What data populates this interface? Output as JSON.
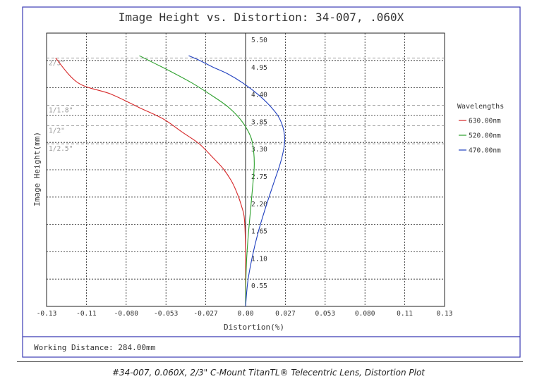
{
  "chart_data": {
    "type": "line",
    "title": "Image Height vs. Distortion: 34-007, .060X",
    "xlabel": "Distortion(%)",
    "ylabel": "Image Height(mm)",
    "xlim": [
      -0.133,
      0.133
    ],
    "ylim": [
      0,
      6.05
    ],
    "x_ticks": [
      "-0.13",
      "-0.11",
      "-0.080",
      "-0.053",
      "-0.027",
      "0.00",
      "0.027",
      "0.053",
      "0.080",
      "0.11",
      "0.13"
    ],
    "y_ticks": [
      "0.55",
      "1.10",
      "1.65",
      "2.20",
      "2.75",
      "3.30",
      "3.85",
      "4.40",
      "4.95",
      "5.50"
    ],
    "grid": true,
    "legend_title": "Wavelengths",
    "legend_position": "right",
    "sensor_marks": [
      {
        "label": "2/3\"",
        "y": 5.5
      },
      {
        "label": "1/1.8\"",
        "y": 4.45
      },
      {
        "label": "1/2\"",
        "y": 4.0
      },
      {
        "label": "1/2.5\"",
        "y": 3.6
      }
    ],
    "series": [
      {
        "name": "630.00nm",
        "color": "#d62728",
        "x": [
          0,
          0,
          0,
          -0.0003,
          -0.001,
          -0.0025,
          -0.005,
          -0.009,
          -0.015,
          -0.022,
          -0.031,
          -0.042,
          -0.055,
          -0.071,
          -0.09,
          -0.112,
          -0.127
        ],
        "y": [
          0,
          0.55,
          1.1,
          1.65,
          2.0,
          2.2,
          2.45,
          2.75,
          3.05,
          3.3,
          3.6,
          3.85,
          4.15,
          4.4,
          4.7,
          4.95,
          5.5
        ]
      },
      {
        "name": "520.00nm",
        "color": "#2ca02c",
        "x": [
          0,
          0.0002,
          0.0008,
          0.002,
          0.0035,
          0.005,
          0.0058,
          0.0055,
          0.004,
          0.0005,
          -0.005,
          -0.013,
          -0.024,
          -0.036,
          -0.05,
          -0.062,
          -0.071
        ],
        "y": [
          0,
          0.55,
          1.1,
          1.65,
          2.2,
          2.75,
          3.1,
          3.4,
          3.7,
          3.95,
          4.2,
          4.45,
          4.7,
          4.95,
          5.2,
          5.4,
          5.55
        ]
      },
      {
        "name": "470.00nm",
        "color": "#1f3fbf",
        "x": [
          0,
          0.0015,
          0.0045,
          0.0085,
          0.0135,
          0.019,
          0.0235,
          0.026,
          0.0255,
          0.022,
          0.016,
          0.008,
          -0.002,
          -0.012,
          -0.022,
          -0.031,
          -0.038
        ],
        "y": [
          0,
          0.55,
          1.1,
          1.65,
          2.2,
          2.75,
          3.2,
          3.6,
          3.9,
          4.2,
          4.45,
          4.7,
          4.95,
          5.15,
          5.3,
          5.45,
          5.55
        ]
      }
    ]
  },
  "footer": {
    "working_distance": "Working Distance: 284.00mm",
    "caption": "#34-007, 0.060X, 2/3\" C-Mount TitanTL® Telecentric Lens, Distortion Plot"
  }
}
